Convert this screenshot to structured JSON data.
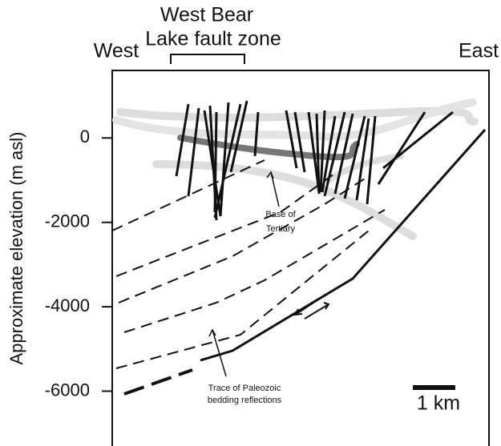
{
  "header": {
    "zone_line1": "West Bear",
    "zone_line2": "Lake fault zone",
    "west": "West",
    "east": "East"
  },
  "axis": {
    "label": "Approximate elevation (m asl)",
    "ticks": [
      0,
      -2000,
      -4000,
      -6000
    ],
    "range": [
      1600,
      -7300
    ]
  },
  "annotations": {
    "tertiary_line1": "Base of",
    "tertiary_line2": "Tertiary",
    "paleozoic_line1": "Trace of Paleozoic",
    "paleozoic_line2": "bedding reflections",
    "scale": "1 km"
  }
}
